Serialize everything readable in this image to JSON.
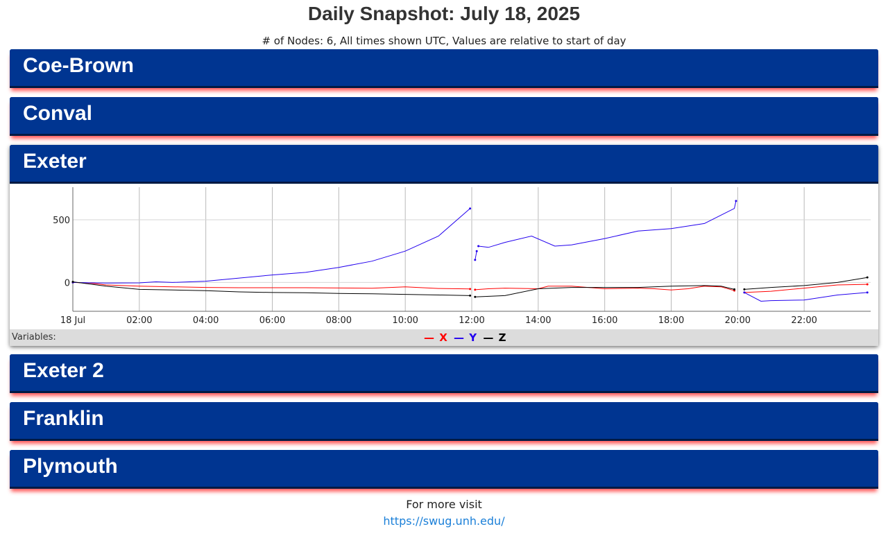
{
  "page": {
    "title": "Daily Snapshot: July 18, 2025",
    "subtitle": "# of Nodes: 6, All times shown UTC, Values are relative to start of day"
  },
  "panels": [
    {
      "label": "Coe-Brown",
      "expanded": false
    },
    {
      "label": "Conval",
      "expanded": false
    },
    {
      "label": "Exeter",
      "expanded": true
    },
    {
      "label": "Exeter 2",
      "expanded": false
    },
    {
      "label": "Franklin",
      "expanded": false
    },
    {
      "label": "Plymouth",
      "expanded": false
    }
  ],
  "legend": {
    "label": "Variables:",
    "items": [
      {
        "name": "X",
        "color": "#ff0000"
      },
      {
        "name": "Y",
        "color": "#2200ee"
      },
      {
        "name": "Z",
        "color": "#000000"
      }
    ]
  },
  "footer": {
    "text": "For more visit",
    "link": "https://swug.unh.edu/"
  },
  "chart_data": {
    "type": "line",
    "x_unit": "hour of day (UTC)",
    "xlim": [
      0,
      24
    ],
    "ylim": [
      -230,
      760
    ],
    "yticks": [
      0,
      500
    ],
    "ytick_labels": [
      "0",
      "500"
    ],
    "xticks": [
      0,
      2,
      4,
      6,
      8,
      10,
      12,
      14,
      16,
      18,
      20,
      22
    ],
    "xtick_labels": [
      "18 Jul",
      "02:00",
      "04:00",
      "06:00",
      "08:00",
      "10:00",
      "12:00",
      "14:00",
      "16:00",
      "18:00",
      "20:00",
      "22:00"
    ],
    "grid": true,
    "series": [
      {
        "name": "X",
        "color": "#ff0000",
        "segments": [
          [
            [
              0,
              0
            ],
            [
              0.5,
              -5
            ],
            [
              1,
              -20
            ],
            [
              2,
              -30
            ],
            [
              3,
              -35
            ],
            [
              4,
              -40
            ],
            [
              5,
              -42
            ],
            [
              6,
              -42
            ],
            [
              7,
              -42
            ],
            [
              8,
              -44
            ],
            [
              9,
              -46
            ],
            [
              10,
              -35
            ],
            [
              11,
              -48
            ],
            [
              11.95,
              -52
            ]
          ],
          [
            [
              12.1,
              -58
            ],
            [
              12.5,
              -50
            ],
            [
              13,
              -45
            ],
            [
              14,
              -50
            ],
            [
              14.3,
              -30
            ],
            [
              15,
              -30
            ],
            [
              16,
              -50
            ],
            [
              17,
              -45
            ],
            [
              17.5,
              -50
            ],
            [
              18,
              -60
            ],
            [
              18.5,
              -50
            ],
            [
              19,
              -30
            ],
            [
              19.5,
              -35
            ],
            [
              19.9,
              -65
            ]
          ],
          [
            [
              20.2,
              -80
            ],
            [
              21,
              -70
            ],
            [
              22,
              -45
            ],
            [
              23,
              -20
            ],
            [
              23.9,
              -15
            ]
          ]
        ]
      },
      {
        "name": "Y",
        "color": "#2200ee",
        "segments": [
          [
            [
              0,
              0
            ],
            [
              1,
              -5
            ],
            [
              2,
              -3
            ],
            [
              2.5,
              5
            ],
            [
              3,
              0
            ],
            [
              4,
              10
            ],
            [
              5,
              35
            ],
            [
              6,
              60
            ],
            [
              7,
              80
            ],
            [
              8,
              120
            ],
            [
              9,
              170
            ],
            [
              10,
              250
            ],
            [
              11,
              370
            ],
            [
              11.95,
              590
            ]
          ],
          [
            [
              12.1,
              180
            ],
            [
              12.15,
              250
            ]
          ],
          [
            [
              12.2,
              290
            ],
            [
              12.5,
              280
            ],
            [
              13,
              320
            ],
            [
              13.8,
              370
            ],
            [
              14.5,
              290
            ],
            [
              15,
              300
            ],
            [
              16,
              350
            ],
            [
              17,
              410
            ],
            [
              18,
              430
            ],
            [
              19,
              470
            ],
            [
              19.9,
              590
            ],
            [
              19.95,
              650
            ]
          ],
          [
            [
              20.2,
              -80
            ],
            [
              20.7,
              -150
            ],
            [
              21,
              -145
            ],
            [
              22,
              -140
            ],
            [
              23,
              -100
            ],
            [
              23.9,
              -80
            ]
          ]
        ]
      },
      {
        "name": "Z",
        "color": "#000000",
        "segments": [
          [
            [
              0,
              5
            ],
            [
              1,
              -30
            ],
            [
              2,
              -55
            ],
            [
              3,
              -60
            ],
            [
              4,
              -65
            ],
            [
              5,
              -75
            ],
            [
              6,
              -80
            ],
            [
              7,
              -82
            ],
            [
              8,
              -88
            ],
            [
              9,
              -90
            ],
            [
              10,
              -95
            ],
            [
              11,
              -100
            ],
            [
              11.95,
              -105
            ]
          ],
          [
            [
              12.1,
              -115
            ],
            [
              13,
              -105
            ],
            [
              14,
              -50
            ],
            [
              15,
              -40
            ],
            [
              16,
              -40
            ],
            [
              17,
              -40
            ],
            [
              18,
              -30
            ],
            [
              19,
              -25
            ],
            [
              19.5,
              -30
            ],
            [
              19.9,
              -55
            ]
          ],
          [
            [
              20.2,
              -55
            ],
            [
              21,
              -40
            ],
            [
              22,
              -25
            ],
            [
              23,
              0
            ],
            [
              23.9,
              40
            ]
          ]
        ]
      }
    ]
  }
}
